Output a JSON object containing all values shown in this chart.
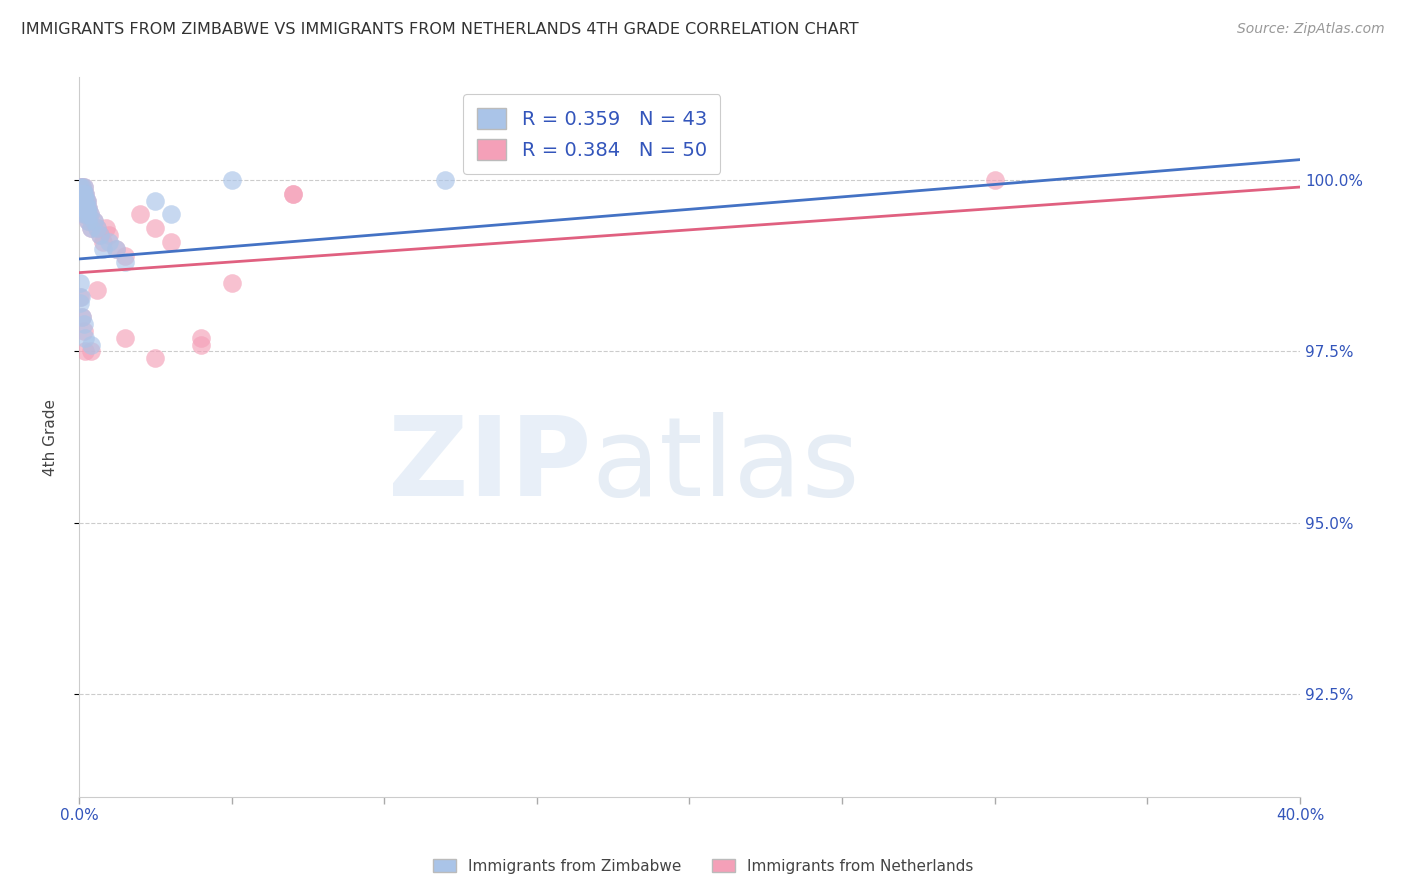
{
  "title": "IMMIGRANTS FROM ZIMBABWE VS IMMIGRANTS FROM NETHERLANDS 4TH GRADE CORRELATION CHART",
  "source": "Source: ZipAtlas.com",
  "ylabel": "4th Grade",
  "yticks": [
    92.5,
    95.0,
    97.5,
    100.0
  ],
  "ytick_labels": [
    "92.5%",
    "95.0%",
    "97.5%",
    "100.0%"
  ],
  "xlim": [
    0.0,
    40.0
  ],
  "ylim": [
    91.0,
    101.5
  ],
  "legend_zimbabwe": "Immigrants from Zimbabwe",
  "legend_netherlands": "Immigrants from Netherlands",
  "R_zimbabwe": 0.359,
  "N_zimbabwe": 43,
  "R_netherlands": 0.384,
  "N_netherlands": 50,
  "color_zimbabwe": "#aac4e8",
  "color_netherlands": "#f4a0b8",
  "line_color_zimbabwe": "#4472c4",
  "line_color_netherlands": "#e06080",
  "zimbabwe_x": [
    0.05,
    0.07,
    0.08,
    0.08,
    0.1,
    0.1,
    0.1,
    0.12,
    0.12,
    0.15,
    0.15,
    0.15,
    0.18,
    0.18,
    0.2,
    0.2,
    0.22,
    0.22,
    0.25,
    0.25,
    0.28,
    0.3,
    0.3,
    0.35,
    0.4,
    0.5,
    0.6,
    0.7,
    0.8,
    1.0,
    1.2,
    1.5,
    2.5,
    3.0,
    0.05,
    0.05,
    0.07,
    0.1,
    0.15,
    0.2,
    0.4,
    5.0,
    12.0
  ],
  "zimbabwe_y": [
    99.9,
    99.8,
    99.8,
    99.7,
    99.9,
    99.8,
    99.7,
    99.8,
    99.6,
    99.9,
    99.8,
    99.6,
    99.7,
    99.5,
    99.8,
    99.6,
    99.7,
    99.5,
    99.7,
    99.6,
    99.5,
    99.6,
    99.4,
    99.5,
    99.3,
    99.4,
    99.3,
    99.2,
    99.0,
    99.1,
    99.0,
    98.8,
    99.7,
    99.5,
    98.5,
    98.2,
    98.3,
    98.0,
    97.9,
    97.7,
    97.6,
    100.0,
    100.0
  ],
  "netherlands_x": [
    0.05,
    0.07,
    0.08,
    0.08,
    0.1,
    0.1,
    0.1,
    0.12,
    0.12,
    0.15,
    0.15,
    0.15,
    0.18,
    0.18,
    0.2,
    0.2,
    0.22,
    0.22,
    0.25,
    0.25,
    0.28,
    0.3,
    0.3,
    0.35,
    0.4,
    0.5,
    0.6,
    0.7,
    0.8,
    1.0,
    1.2,
    1.5,
    2.0,
    2.5,
    3.0,
    4.0,
    5.0,
    7.0,
    0.05,
    0.1,
    0.15,
    0.2,
    0.4,
    0.6,
    0.9,
    1.5,
    2.5,
    4.0,
    7.0,
    30.0
  ],
  "netherlands_y": [
    99.9,
    99.8,
    99.8,
    99.7,
    99.9,
    99.8,
    99.7,
    99.8,
    99.6,
    99.9,
    99.8,
    99.6,
    99.7,
    99.5,
    99.8,
    99.6,
    99.7,
    99.5,
    99.7,
    99.6,
    99.5,
    99.6,
    99.4,
    99.5,
    99.3,
    99.4,
    99.3,
    99.2,
    99.1,
    99.2,
    99.0,
    98.9,
    99.5,
    99.3,
    99.1,
    97.6,
    98.5,
    99.8,
    98.3,
    98.0,
    97.8,
    97.5,
    97.5,
    98.4,
    99.3,
    97.7,
    97.4,
    97.7,
    99.8,
    100.0
  ],
  "reg_zim_x0": 0.0,
  "reg_zim_y0": 98.85,
  "reg_zim_x1": 40.0,
  "reg_zim_y1": 100.3,
  "reg_net_x0": 0.0,
  "reg_net_y0": 98.65,
  "reg_net_x1": 40.0,
  "reg_net_y1": 99.9
}
